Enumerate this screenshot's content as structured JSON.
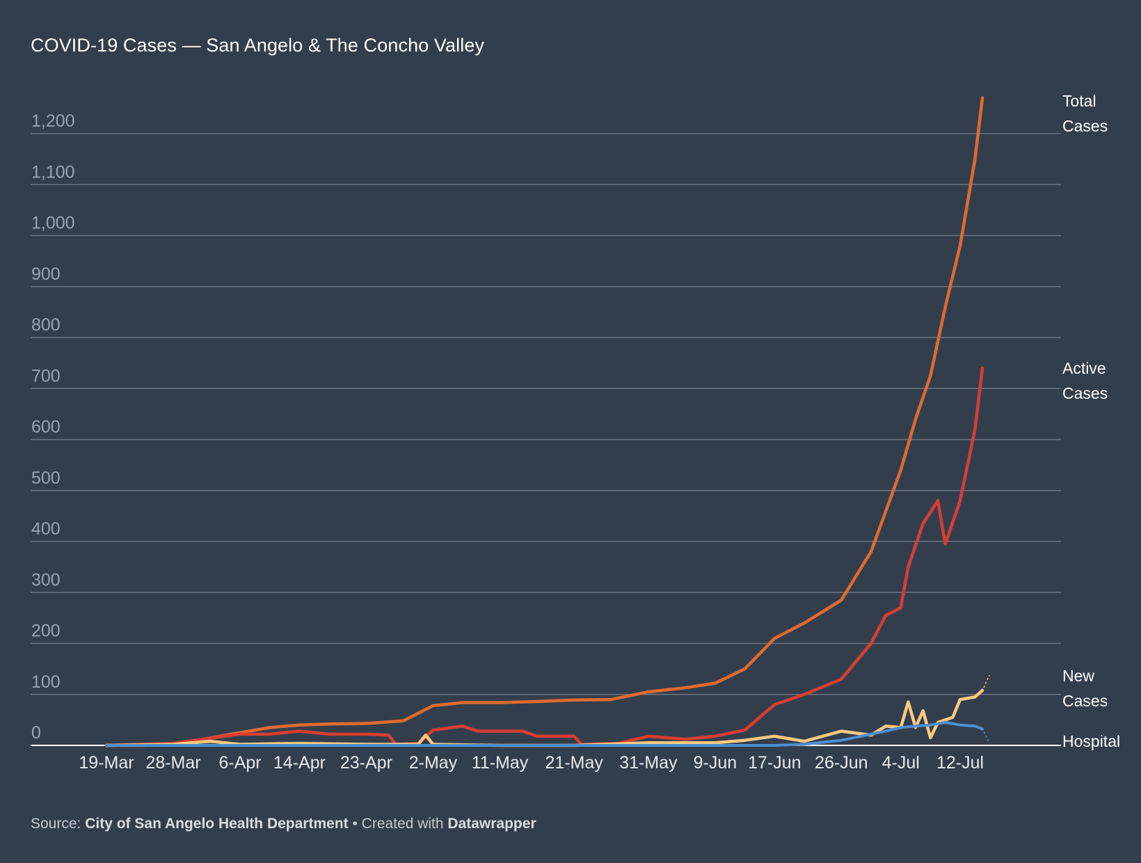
{
  "header": {
    "title": "COVID-19 Cases — San Angelo & The Concho Valley"
  },
  "footer": {
    "source_prefix": "Source: ",
    "source_name": "City of San Angelo Health Department",
    "separator": " • Created with ",
    "tool_name": "Datawrapper"
  },
  "chart_data": {
    "type": "line",
    "title": "COVID-19 Cases — San Angelo & The Concho Valley",
    "xlabel": "",
    "ylabel": "",
    "ylim": [
      0,
      1200
    ],
    "y_ticks": [
      0,
      100,
      200,
      300,
      400,
      500,
      600,
      700,
      800,
      900,
      1000,
      1100,
      1200
    ],
    "y_tick_labels": [
      "0",
      "100",
      "200",
      "300",
      "400",
      "500",
      "600",
      "700",
      "800",
      "900",
      "1,000",
      "1,100",
      "1,200"
    ],
    "x_tick_labels": [
      "19-Mar",
      "28-Mar",
      "6-Apr",
      "14-Apr",
      "23-Apr",
      "2-May",
      "11-May",
      "21-May",
      "31-May",
      "9-Jun",
      "17-Jun",
      "26-Jun",
      "4-Jul",
      "12-Jul"
    ],
    "grid": true,
    "legend": "direct labels at line ends (right)",
    "colors": {
      "background": "#333e4d",
      "grid": "#6d7682",
      "axis": "#ffffff"
    },
    "series": [
      {
        "name": "Total Cases",
        "color": "#e06a30",
        "points": [
          [
            "19-Mar",
            0
          ],
          [
            "24-Mar",
            0
          ],
          [
            "28-Mar",
            4
          ],
          [
            "1-Apr",
            12
          ],
          [
            "6-Apr",
            25
          ],
          [
            "10-Apr",
            35
          ],
          [
            "14-Apr",
            40
          ],
          [
            "18-Apr",
            42
          ],
          [
            "23-Apr",
            43
          ],
          [
            "28-Apr",
            48
          ],
          [
            "2-May",
            78
          ],
          [
            "6-May",
            84
          ],
          [
            "11-May",
            84
          ],
          [
            "16-May",
            86
          ],
          [
            "21-May",
            89
          ],
          [
            "26-May",
            90
          ],
          [
            "31-May",
            105
          ],
          [
            "5-Jun",
            113
          ],
          [
            "9-Jun",
            122
          ],
          [
            "13-Jun",
            150
          ],
          [
            "17-Jun",
            210
          ],
          [
            "21-Jun",
            240
          ],
          [
            "26-Jun",
            285
          ],
          [
            "30-Jun",
            380
          ],
          [
            "4-Jul",
            540
          ],
          [
            "6-Jul",
            640
          ],
          [
            "8-Jul",
            725
          ],
          [
            "10-Jul",
            860
          ],
          [
            "12-Jul",
            980
          ],
          [
            "14-Jul",
            1150
          ],
          [
            "15-Jul",
            1270
          ]
        ]
      },
      {
        "name": "Active Cases",
        "color": "#d83d33",
        "points": [
          [
            "19-Mar",
            0
          ],
          [
            "28-Mar",
            4
          ],
          [
            "6-Apr",
            22
          ],
          [
            "10-Apr",
            22
          ],
          [
            "14-Apr",
            28
          ],
          [
            "18-Apr",
            22
          ],
          [
            "23-Apr",
            22
          ],
          [
            "26-Apr",
            20
          ],
          [
            "27-Apr",
            2
          ],
          [
            "30-Apr",
            4
          ],
          [
            "2-May",
            30
          ],
          [
            "6-May",
            38
          ],
          [
            "8-May",
            28
          ],
          [
            "14-May",
            28
          ],
          [
            "16-May",
            18
          ],
          [
            "21-May",
            18
          ],
          [
            "22-May",
            2
          ],
          [
            "27-May",
            4
          ],
          [
            "31-May",
            18
          ],
          [
            "5-Jun",
            12
          ],
          [
            "9-Jun",
            18
          ],
          [
            "13-Jun",
            30
          ],
          [
            "17-Jun",
            80
          ],
          [
            "21-Jun",
            100
          ],
          [
            "26-Jun",
            130
          ],
          [
            "30-Jun",
            200
          ],
          [
            "2-Jul",
            255
          ],
          [
            "4-Jul",
            270
          ],
          [
            "5-Jul",
            350
          ],
          [
            "7-Jul",
            435
          ],
          [
            "9-Jul",
            480
          ],
          [
            "10-Jul",
            395
          ],
          [
            "12-Jul",
            480
          ],
          [
            "14-Jul",
            620
          ],
          [
            "15-Jul",
            740
          ]
        ]
      },
      {
        "name": "New Cases",
        "color": "#fac980",
        "points": [
          [
            "19-Mar",
            0
          ],
          [
            "28-Mar",
            2
          ],
          [
            "2-Apr",
            8
          ],
          [
            "6-Apr",
            2
          ],
          [
            "14-Apr",
            4
          ],
          [
            "23-Apr",
            2
          ],
          [
            "30-Apr",
            2
          ],
          [
            "1-May",
            20
          ],
          [
            "2-May",
            2
          ],
          [
            "11-May",
            0
          ],
          [
            "21-May",
            0
          ],
          [
            "31-May",
            5
          ],
          [
            "9-Jun",
            5
          ],
          [
            "13-Jun",
            10
          ],
          [
            "17-Jun",
            18
          ],
          [
            "21-Jun",
            8
          ],
          [
            "26-Jun",
            28
          ],
          [
            "30-Jun",
            20
          ],
          [
            "2-Jul",
            38
          ],
          [
            "4-Jul",
            35
          ],
          [
            "5-Jul",
            85
          ],
          [
            "6-Jul",
            35
          ],
          [
            "7-Jul",
            68
          ],
          [
            "8-Jul",
            15
          ],
          [
            "9-Jul",
            45
          ],
          [
            "11-Jul",
            55
          ],
          [
            "12-Jul",
            90
          ],
          [
            "14-Jul",
            95
          ],
          [
            "15-Jul",
            108
          ]
        ]
      },
      {
        "name": "Hospital",
        "color": "#4e8fd1",
        "points": [
          [
            "19-Mar",
            0
          ],
          [
            "31-May",
            0
          ],
          [
            "17-Jun",
            0
          ],
          [
            "21-Jun",
            2
          ],
          [
            "26-Jun",
            10
          ],
          [
            "30-Jun",
            22
          ],
          [
            "2-Jul",
            28
          ],
          [
            "4-Jul",
            35
          ],
          [
            "6-Jul",
            38
          ],
          [
            "8-Jul",
            40
          ],
          [
            "10-Jul",
            45
          ],
          [
            "12-Jul",
            40
          ],
          [
            "14-Jul",
            38
          ],
          [
            "15-Jul",
            32
          ]
        ]
      }
    ]
  }
}
